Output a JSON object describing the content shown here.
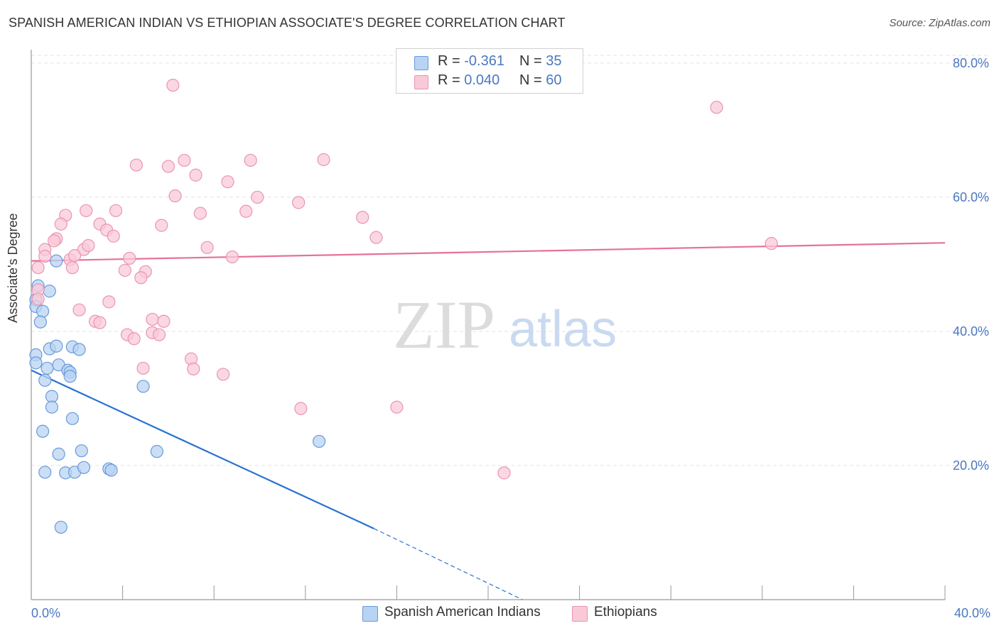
{
  "title": "SPANISH AMERICAN INDIAN VS ETHIOPIAN ASSOCIATE'S DEGREE CORRELATION CHART",
  "source": "Source: ZipAtlas.com",
  "watermark": {
    "zip": "ZIP",
    "atlas": "atlas"
  },
  "legend": {
    "series1": {
      "r_label": "R = ",
      "r_value": "-0.361",
      "n_label": "N = ",
      "n_value": "35"
    },
    "series2": {
      "r_label": "R = ",
      "r_value": "0.040",
      "n_label": "N = ",
      "n_value": "60"
    }
  },
  "colors": {
    "blue_fill": "#b8d3f3",
    "blue_stroke": "#6a9ad8",
    "blue_line": "#2a72d0",
    "pink_fill": "#f9c9d8",
    "pink_stroke": "#e995b2",
    "pink_line": "#e5719a",
    "grid": "#e3e3e3",
    "axis_text": "#4a78c2"
  },
  "chart_data": {
    "type": "scatter",
    "title": "SPANISH AMERICAN INDIAN VS ETHIOPIAN ASSOCIATE'S DEGREE CORRELATION CHART",
    "xlabel": "",
    "ylabel": "Associate's Degree",
    "xlim": [
      0,
      40
    ],
    "ylim": [
      0,
      82
    ],
    "x_tick_labels": [
      "0.0%",
      "40.0%"
    ],
    "y_ticks": [
      20,
      40,
      60,
      80
    ],
    "y_tick_labels": [
      "20.0%",
      "40.0%",
      "60.0%",
      "80.0%"
    ],
    "grid": true,
    "legend_position": "top-center",
    "series": [
      {
        "name": "Spanish American Indians",
        "color": "blue",
        "points": [
          [
            0.2,
            44.7
          ],
          [
            0.3,
            46.8
          ],
          [
            0.8,
            46.0
          ],
          [
            0.2,
            43.7
          ],
          [
            0.5,
            43.0
          ],
          [
            0.4,
            41.4
          ],
          [
            1.1,
            50.5
          ],
          [
            0.2,
            36.5
          ],
          [
            0.2,
            35.3
          ],
          [
            0.8,
            37.4
          ],
          [
            1.1,
            37.8
          ],
          [
            1.8,
            37.7
          ],
          [
            2.1,
            37.3
          ],
          [
            0.7,
            34.5
          ],
          [
            1.2,
            35.0
          ],
          [
            1.6,
            34.2
          ],
          [
            1.7,
            33.9
          ],
          [
            1.7,
            33.3
          ],
          [
            0.6,
            32.7
          ],
          [
            0.9,
            30.3
          ],
          [
            0.9,
            28.7
          ],
          [
            1.8,
            27.0
          ],
          [
            4.9,
            31.8
          ],
          [
            0.5,
            25.1
          ],
          [
            1.2,
            21.7
          ],
          [
            2.2,
            22.2
          ],
          [
            5.5,
            22.1
          ],
          [
            12.6,
            23.6
          ],
          [
            0.6,
            19.0
          ],
          [
            1.5,
            18.9
          ],
          [
            1.9,
            19.0
          ],
          [
            2.3,
            19.7
          ],
          [
            3.4,
            19.5
          ],
          [
            3.5,
            19.3
          ],
          [
            1.3,
            10.8
          ]
        ],
        "trend": {
          "x": [
            0,
            15
          ],
          "y": [
            34.2,
            10.6
          ],
          "dashed_to": [
            21.5,
            0
          ]
        }
      },
      {
        "name": "Ethiopians",
        "color": "pink",
        "points": [
          [
            6.2,
            76.7
          ],
          [
            30.0,
            73.4
          ],
          [
            4.6,
            64.8
          ],
          [
            6.0,
            64.6
          ],
          [
            6.7,
            65.5
          ],
          [
            9.6,
            65.5
          ],
          [
            12.8,
            65.6
          ],
          [
            7.2,
            63.3
          ],
          [
            8.6,
            62.3
          ],
          [
            6.3,
            60.2
          ],
          [
            9.9,
            60.0
          ],
          [
            11.7,
            59.2
          ],
          [
            2.4,
            58.0
          ],
          [
            3.7,
            58.0
          ],
          [
            7.4,
            57.6
          ],
          [
            9.4,
            57.9
          ],
          [
            1.5,
            57.3
          ],
          [
            14.5,
            57.0
          ],
          [
            1.3,
            56.0
          ],
          [
            3.0,
            56.0
          ],
          [
            5.7,
            55.8
          ],
          [
            3.3,
            55.1
          ],
          [
            3.6,
            54.2
          ],
          [
            1.1,
            53.8
          ],
          [
            1.0,
            53.5
          ],
          [
            15.1,
            54.0
          ],
          [
            32.4,
            53.1
          ],
          [
            0.6,
            52.2
          ],
          [
            2.3,
            52.2
          ],
          [
            7.7,
            52.5
          ],
          [
            2.5,
            52.8
          ],
          [
            0.6,
            51.2
          ],
          [
            1.7,
            50.7
          ],
          [
            1.9,
            51.3
          ],
          [
            4.3,
            50.9
          ],
          [
            8.8,
            51.1
          ],
          [
            0.3,
            49.5
          ],
          [
            1.8,
            49.5
          ],
          [
            4.1,
            49.1
          ],
          [
            5.0,
            48.9
          ],
          [
            4.8,
            48.0
          ],
          [
            0.3,
            46.2
          ],
          [
            0.3,
            44.8
          ],
          [
            3.4,
            44.4
          ],
          [
            2.1,
            43.2
          ],
          [
            5.3,
            41.8
          ],
          [
            5.8,
            41.5
          ],
          [
            2.8,
            41.5
          ],
          [
            3.0,
            41.3
          ],
          [
            4.2,
            39.5
          ],
          [
            5.3,
            39.8
          ],
          [
            5.6,
            39.5
          ],
          [
            4.5,
            38.9
          ],
          [
            7.0,
            35.9
          ],
          [
            7.1,
            34.4
          ],
          [
            4.9,
            34.5
          ],
          [
            8.4,
            33.6
          ],
          [
            11.8,
            28.5
          ],
          [
            16.0,
            28.7
          ],
          [
            20.7,
            18.9
          ]
        ],
        "trend": {
          "x": [
            0,
            40
          ],
          "y": [
            50.5,
            53.2
          ]
        }
      }
    ]
  }
}
